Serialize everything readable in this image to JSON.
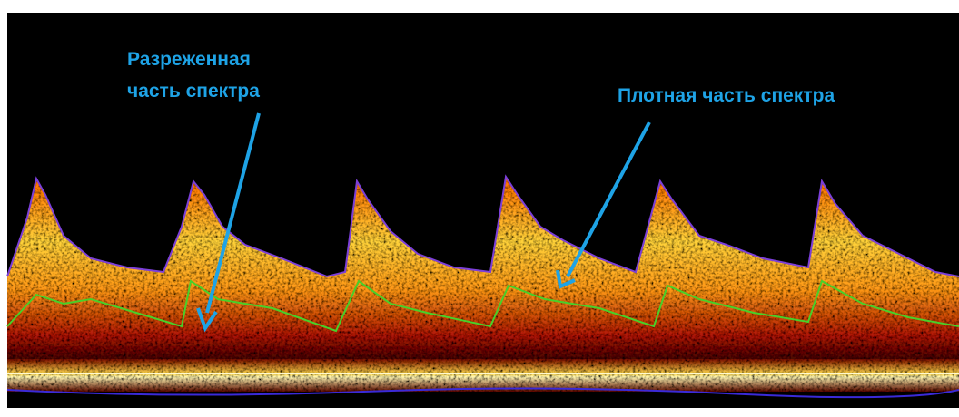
{
  "annotations": [
    {
      "lines": [
        "Разреженная",
        "часть спектра"
      ]
    },
    {
      "lines": [
        "Плотная часть спектра"
      ]
    }
  ]
}
